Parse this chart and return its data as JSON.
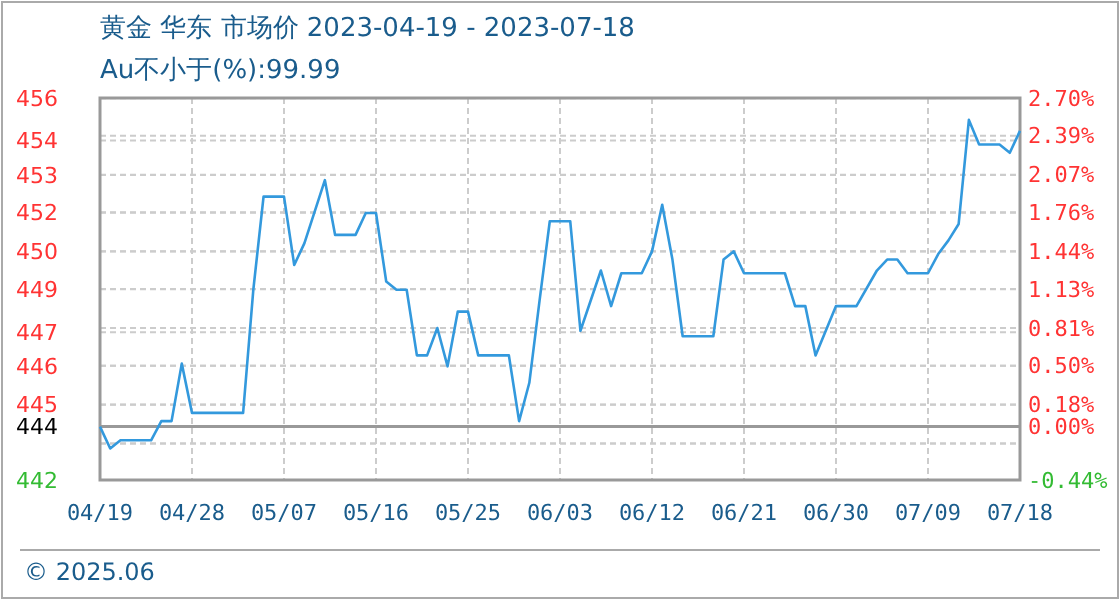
{
  "chart_data": {
    "type": "line",
    "title": "黄金 华东 市场价 2023-04-19 - 2023-07-18",
    "subtitle": "Au不小于(%):99.99",
    "annotations": [
      "© 2025.06"
    ],
    "x": [
      "2023-04-19",
      "2023-04-20",
      "2023-04-21",
      "2023-04-24",
      "2023-04-25",
      "2023-04-26",
      "2023-04-27",
      "2023-04-28",
      "2023-05-03",
      "2023-05-04",
      "2023-05-05",
      "2023-05-07",
      "2023-05-08",
      "2023-05-09",
      "2023-05-11",
      "2023-05-12",
      "2023-05-14",
      "2023-05-15",
      "2023-05-16",
      "2023-05-17",
      "2023-05-18",
      "2023-05-19",
      "2023-05-20",
      "2023-05-21",
      "2023-05-22",
      "2023-05-23",
      "2023-05-24",
      "2023-05-25",
      "2023-05-26",
      "2023-05-29",
      "2023-05-30",
      "2023-05-31",
      "2023-06-01",
      "2023-06-02",
      "2023-06-04",
      "2023-06-05",
      "2023-06-07",
      "2023-06-08",
      "2023-06-09",
      "2023-06-11",
      "2023-06-12",
      "2023-06-13",
      "2023-06-14",
      "2023-06-15",
      "2023-06-18",
      "2023-06-19",
      "2023-06-20",
      "2023-06-21",
      "2023-06-25",
      "2023-06-26",
      "2023-06-27",
      "2023-06-28",
      "2023-06-30",
      "2023-07-02",
      "2023-07-04",
      "2023-07-05",
      "2023-07-06",
      "2023-07-07",
      "2023-07-09",
      "2023-07-10",
      "2023-07-11",
      "2023-07-12",
      "2023-07-13",
      "2023-07-14",
      "2023-07-16",
      "2023-07-17",
      "2023-07-18"
    ],
    "series": [
      {
        "color": "#3399dd",
        "values": [
          444.0,
          443.2,
          443.5,
          443.5,
          444.2,
          444.2,
          446.3,
          444.5,
          444.5,
          449.0,
          452.4,
          452.4,
          449.9,
          450.7,
          453.0,
          451.0,
          451.0,
          451.8,
          451.8,
          449.3,
          449.0,
          449.0,
          446.6,
          446.6,
          447.6,
          446.2,
          448.2,
          448.2,
          446.6,
          446.6,
          444.2,
          445.6,
          448.6,
          451.5,
          451.5,
          447.5,
          449.7,
          448.4,
          449.6,
          449.6,
          450.4,
          452.1,
          450.1,
          447.3,
          447.3,
          450.1,
          450.4,
          449.6,
          449.6,
          448.4,
          448.4,
          446.6,
          448.4,
          448.4,
          449.7,
          450.1,
          450.1,
          449.6,
          449.6,
          450.3,
          450.8,
          451.4,
          455.2,
          454.3,
          454.3,
          454.0,
          454.8
        ]
      }
    ],
    "xlim": [
      "2023-04-19",
      "2023-07-18"
    ],
    "xticks": [
      {
        "value": "2023-04-19",
        "label": "04/19"
      },
      {
        "value": "2023-04-28",
        "label": "04/28"
      },
      {
        "value": "2023-05-07",
        "label": "05/07"
      },
      {
        "value": "2023-05-16",
        "label": "05/16"
      },
      {
        "value": "2023-05-25",
        "label": "05/25"
      },
      {
        "value": "2023-06-03",
        "label": "06/03"
      },
      {
        "value": "2023-06-12",
        "label": "06/12"
      },
      {
        "value": "2023-06-21",
        "label": "06/21"
      },
      {
        "value": "2023-06-30",
        "label": "06/30"
      },
      {
        "value": "2023-07-09",
        "label": "07/09"
      },
      {
        "value": "2023-07-18",
        "label": "07/18"
      }
    ],
    "ylim": [
      442.05,
      456
    ],
    "yticks": [
      {
        "value": 442.05,
        "label": "442"
      },
      {
        "value": 443.38,
        "label": null
      },
      {
        "value": 444,
        "label": "444"
      },
      {
        "value": 444.8,
        "label": "445"
      },
      {
        "value": 446.22,
        "label": "446"
      },
      {
        "value": 447.45,
        "label": "447"
      },
      {
        "value": 449.02,
        "label": "449"
      },
      {
        "value": 450.39,
        "label": "450"
      },
      {
        "value": 451.81,
        "label": "452"
      },
      {
        "value": 453.19,
        "label": "453"
      },
      {
        "value": 454.45,
        "label": "454"
      },
      {
        "value": 455.99,
        "label": "456"
      }
    ],
    "y2lim": [
      -0.44,
      2.7
    ],
    "y2ticks": [
      {
        "value": -0.44,
        "label": "-0.44%"
      },
      {
        "value": -0.14,
        "label": null
      },
      {
        "value": 0,
        "label": "0.00%"
      },
      {
        "value": 0.18,
        "label": "0.18%"
      },
      {
        "value": 0.5,
        "label": "0.50%"
      },
      {
        "value": 0.81,
        "label": "0.81%"
      },
      {
        "value": 1.13,
        "label": "1.13%"
      },
      {
        "value": 1.44,
        "label": "1.44%"
      },
      {
        "value": 1.76,
        "label": "1.76%"
      },
      {
        "value": 2.07,
        "label": "2.07%"
      },
      {
        "value": 2.39,
        "label": "2.39%"
      },
      {
        "value": 2.7,
        "label": "2.70%"
      }
    ],
    "ref_lines": [
      {
        "axis": "y",
        "value": 444,
        "color": "#999999"
      }
    ],
    "grid": true
  }
}
